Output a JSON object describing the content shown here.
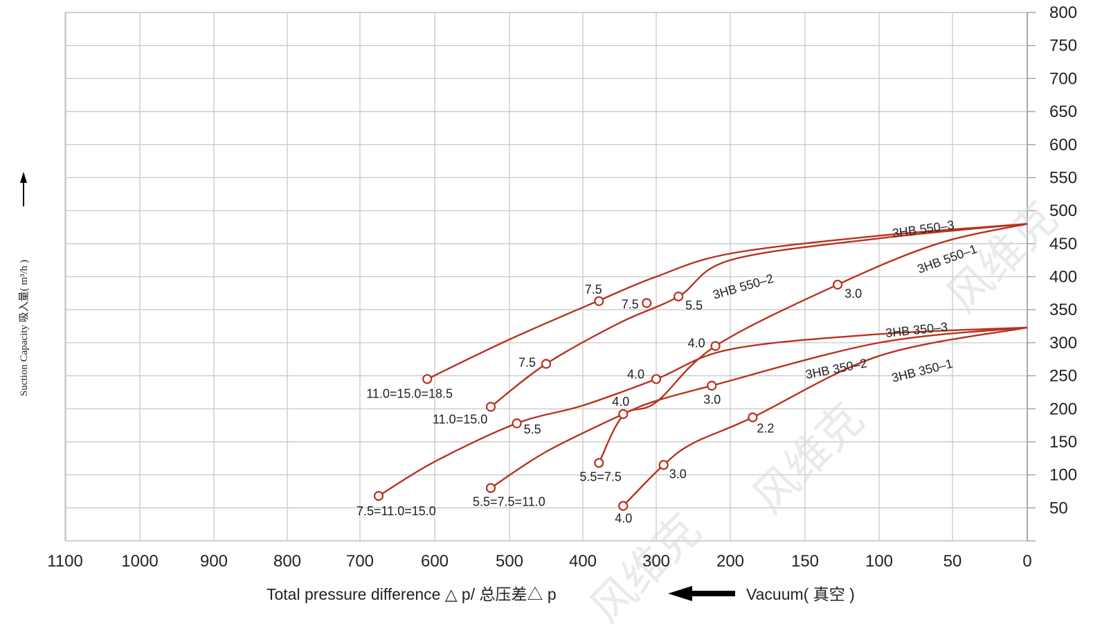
{
  "chart_data": {
    "type": "line",
    "title": "",
    "xlabel": "Total pressure difference △ p/ 总压差△ p",
    "xlabel_secondary": "Vacuum( 真空 )",
    "ylabel": "Suction  Capacity 吸入量( m³/h )",
    "xlim": [
      1100,
      0
    ],
    "ylim": [
      0,
      800
    ],
    "x_ticks": [
      "1100",
      "1000",
      "900",
      "800",
      "700",
      "600",
      "500",
      "400",
      "300",
      "200",
      "150",
      "100",
      "50",
      "0"
    ],
    "y_ticks": [
      "800",
      "750",
      "700",
      "650",
      "600",
      "550",
      "500",
      "450",
      "400",
      "350",
      "300",
      "250",
      "200",
      "150",
      "100",
      "50"
    ],
    "grid": true,
    "line_color": "#b8321f",
    "series": [
      {
        "name": "3HB 550–3",
        "points": [
          [
            0,
            480
          ],
          [
            100,
            462
          ],
          [
            200,
            435
          ],
          [
            300,
            400
          ],
          [
            380,
            363
          ],
          [
            500,
            305
          ],
          [
            610,
            245
          ]
        ]
      },
      {
        "name": "3HB 550–2",
        "points": [
          [
            0,
            480
          ],
          [
            100,
            458
          ],
          [
            200,
            425
          ],
          [
            270,
            370
          ],
          [
            350,
            330
          ],
          [
            450,
            268
          ],
          [
            525,
            203
          ]
        ]
      },
      {
        "name": "3HB 550–1",
        "points": [
          [
            0,
            480
          ],
          [
            60,
            450
          ],
          [
            128,
            388
          ],
          [
            220,
            295
          ],
          [
            300,
            210
          ],
          [
            345,
            190
          ],
          [
            378,
            118
          ]
        ]
      },
      {
        "name": "3HB 350–3",
        "points": [
          [
            0,
            323
          ],
          [
            100,
            313
          ],
          [
            200,
            290
          ],
          [
            300,
            245
          ],
          [
            400,
            205
          ],
          [
            490,
            178
          ],
          [
            600,
            120
          ],
          [
            675,
            68
          ]
        ]
      },
      {
        "name": "3HB 350–2",
        "points": [
          [
            0,
            323
          ],
          [
            100,
            300
          ],
          [
            225,
            235
          ],
          [
            300,
            212
          ],
          [
            345,
            192
          ],
          [
            450,
            135
          ],
          [
            525,
            80
          ]
        ]
      },
      {
        "name": "3HB 350–1",
        "points": [
          [
            0,
            323
          ],
          [
            100,
            280
          ],
          [
            185,
            187
          ],
          [
            250,
            148
          ],
          [
            290,
            115
          ],
          [
            345,
            53
          ]
        ]
      }
    ],
    "markers": [
      {
        "x": 378,
        "y": 363,
        "label": "7.5"
      },
      {
        "x": 313,
        "y": 360,
        "label": "7.5"
      },
      {
        "x": 270,
        "y": 370,
        "label": "5.5"
      },
      {
        "x": 128,
        "y": 388,
        "label": "3.0"
      },
      {
        "x": 220,
        "y": 295,
        "label": "4.0"
      },
      {
        "x": 450,
        "y": 268,
        "label": "7.5"
      },
      {
        "x": 610,
        "y": 245,
        "label": "11.0=15.0=18.5"
      },
      {
        "x": 300,
        "y": 245,
        "label": "4.0"
      },
      {
        "x": 225,
        "y": 235,
        "label": "3.0"
      },
      {
        "x": 525,
        "y": 203,
        "label": "11.0=15.0"
      },
      {
        "x": 345,
        "y": 192,
        "label": "4.0"
      },
      {
        "x": 185,
        "y": 187,
        "label": "2.2"
      },
      {
        "x": 490,
        "y": 178,
        "label": "5.5"
      },
      {
        "x": 378,
        "y": 118,
        "label": "5.5=7.5"
      },
      {
        "x": 290,
        "y": 115,
        "label": "3.0"
      },
      {
        "x": 525,
        "y": 80,
        "label": "5.5=7.5=11.0"
      },
      {
        "x": 675,
        "y": 68,
        "label": "7.5=11.0=15.0"
      },
      {
        "x": 345,
        "y": 53,
        "label": "4.0"
      }
    ]
  },
  "watermark": "风维克"
}
